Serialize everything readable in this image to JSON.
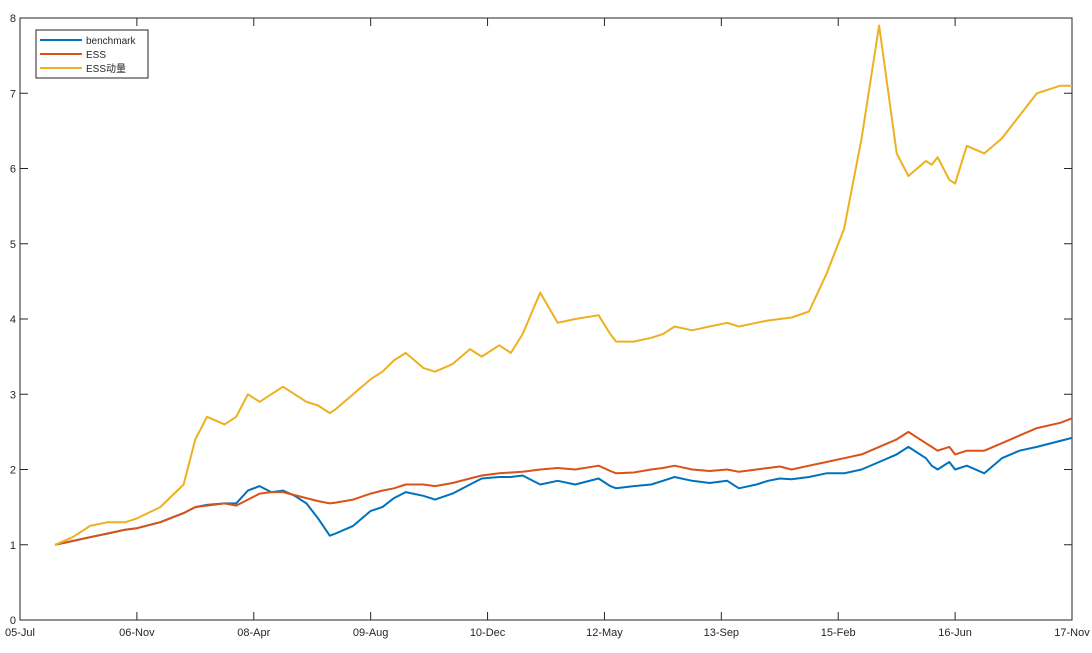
{
  "chart_data": {
    "type": "line",
    "title": "",
    "xlabel": "",
    "ylabel": "",
    "x_tick_labels": [
      "05-Jul",
      "06-Nov",
      "08-Apr",
      "09-Aug",
      "10-Dec",
      "12-May",
      "13-Sep",
      "15-Feb",
      "16-Jun",
      "17-Nov"
    ],
    "ylim": [
      0,
      8
    ],
    "y_ticks": [
      0,
      1,
      2,
      3,
      4,
      5,
      6,
      7,
      8
    ],
    "grid": false,
    "legend_position": "top-left",
    "colors": {
      "benchmark": "#0072BD",
      "ESS": "#D95319",
      "ESS动量": "#EDB120"
    },
    "series": [
      {
        "name": "benchmark",
        "x": [
          0.3,
          0.45,
          0.6,
          0.75,
          0.9,
          1.0,
          1.2,
          1.4,
          1.5,
          1.6,
          1.75,
          1.85,
          1.95,
          2.05,
          2.15,
          2.25,
          2.35,
          2.45,
          2.55,
          2.65,
          2.7,
          2.85,
          3.0,
          3.1,
          3.2,
          3.3,
          3.45,
          3.55,
          3.7,
          3.85,
          3.95,
          4.1,
          4.2,
          4.3,
          4.45,
          4.6,
          4.75,
          4.95,
          5.05,
          5.1,
          5.25,
          5.4,
          5.5,
          5.6,
          5.75,
          5.9,
          6.05,
          6.15,
          6.3,
          6.4,
          6.5,
          6.6,
          6.75,
          6.9,
          7.05,
          7.2,
          7.35,
          7.5,
          7.6,
          7.75,
          7.8,
          7.85,
          7.95,
          8.0,
          8.1,
          8.25,
          8.4,
          8.55,
          8.7,
          8.9,
          9.0
        ],
        "values": [
          1.0,
          1.05,
          1.1,
          1.15,
          1.2,
          1.22,
          1.3,
          1.42,
          1.5,
          1.53,
          1.55,
          1.55,
          1.72,
          1.78,
          1.7,
          1.72,
          1.65,
          1.55,
          1.35,
          1.12,
          1.15,
          1.25,
          1.45,
          1.5,
          1.62,
          1.7,
          1.65,
          1.6,
          1.68,
          1.8,
          1.88,
          1.9,
          1.9,
          1.92,
          1.8,
          1.85,
          1.8,
          1.88,
          1.78,
          1.75,
          1.78,
          1.8,
          1.85,
          1.9,
          1.85,
          1.82,
          1.85,
          1.75,
          1.8,
          1.85,
          1.88,
          1.87,
          1.9,
          1.95,
          1.95,
          2.0,
          2.1,
          2.2,
          2.3,
          2.15,
          2.05,
          2.0,
          2.1,
          2.0,
          2.05,
          1.95,
          2.15,
          2.25,
          2.3,
          2.38,
          2.42
        ]
      },
      {
        "name": "ESS",
        "x": [
          0.3,
          0.45,
          0.6,
          0.75,
          0.9,
          1.0,
          1.2,
          1.4,
          1.5,
          1.6,
          1.75,
          1.85,
          1.95,
          2.05,
          2.15,
          2.25,
          2.35,
          2.45,
          2.55,
          2.65,
          2.7,
          2.85,
          3.0,
          3.1,
          3.2,
          3.3,
          3.45,
          3.55,
          3.7,
          3.85,
          3.95,
          4.1,
          4.2,
          4.3,
          4.45,
          4.6,
          4.75,
          4.95,
          5.05,
          5.1,
          5.25,
          5.4,
          5.5,
          5.6,
          5.75,
          5.9,
          6.05,
          6.15,
          6.3,
          6.4,
          6.5,
          6.6,
          6.75,
          6.9,
          7.05,
          7.2,
          7.35,
          7.5,
          7.6,
          7.75,
          7.8,
          7.85,
          7.95,
          8.0,
          8.1,
          8.25,
          8.4,
          8.55,
          8.7,
          8.9,
          9.0
        ],
        "values": [
          1.0,
          1.05,
          1.1,
          1.15,
          1.2,
          1.22,
          1.3,
          1.42,
          1.5,
          1.52,
          1.55,
          1.52,
          1.6,
          1.68,
          1.7,
          1.7,
          1.66,
          1.62,
          1.58,
          1.55,
          1.56,
          1.6,
          1.68,
          1.72,
          1.75,
          1.8,
          1.8,
          1.78,
          1.82,
          1.88,
          1.92,
          1.95,
          1.96,
          1.97,
          2.0,
          2.02,
          2.0,
          2.05,
          1.98,
          1.95,
          1.96,
          2.0,
          2.02,
          2.05,
          2.0,
          1.98,
          2.0,
          1.97,
          2.0,
          2.02,
          2.04,
          2.0,
          2.05,
          2.1,
          2.15,
          2.2,
          2.3,
          2.4,
          2.5,
          2.35,
          2.3,
          2.25,
          2.3,
          2.2,
          2.25,
          2.25,
          2.35,
          2.45,
          2.55,
          2.62,
          2.68
        ]
      },
      {
        "name": "ESS动量",
        "x": [
          0.3,
          0.45,
          0.6,
          0.75,
          0.9,
          1.0,
          1.2,
          1.4,
          1.5,
          1.6,
          1.75,
          1.85,
          1.95,
          2.05,
          2.15,
          2.25,
          2.35,
          2.45,
          2.55,
          2.65,
          2.7,
          2.85,
          3.0,
          3.1,
          3.2,
          3.3,
          3.45,
          3.55,
          3.7,
          3.85,
          3.95,
          4.1,
          4.2,
          4.3,
          4.45,
          4.6,
          4.75,
          4.95,
          5.05,
          5.1,
          5.25,
          5.4,
          5.5,
          5.6,
          5.75,
          5.9,
          6.05,
          6.15,
          6.3,
          6.4,
          6.5,
          6.6,
          6.75,
          6.9,
          7.05,
          7.2,
          7.35,
          7.5,
          7.6,
          7.75,
          7.8,
          7.85,
          7.95,
          8.0,
          8.1,
          8.25,
          8.4,
          8.55,
          8.7,
          8.9,
          9.0
        ],
        "values": [
          1.0,
          1.1,
          1.25,
          1.3,
          1.3,
          1.35,
          1.5,
          1.8,
          2.4,
          2.7,
          2.6,
          2.7,
          3.0,
          2.9,
          3.0,
          3.1,
          3.0,
          2.9,
          2.85,
          2.75,
          2.8,
          3.0,
          3.2,
          3.3,
          3.45,
          3.55,
          3.35,
          3.3,
          3.4,
          3.6,
          3.5,
          3.65,
          3.55,
          3.8,
          4.35,
          3.95,
          4.0,
          4.05,
          3.8,
          3.7,
          3.7,
          3.75,
          3.8,
          3.9,
          3.85,
          3.9,
          3.95,
          3.9,
          3.95,
          3.98,
          4.0,
          4.02,
          4.1,
          4.6,
          5.2,
          6.4,
          7.9,
          6.2,
          5.9,
          6.1,
          6.05,
          6.15,
          5.85,
          5.8,
          6.3,
          6.2,
          6.4,
          6.7,
          7.0,
          7.1,
          7.1
        ]
      }
    ]
  }
}
